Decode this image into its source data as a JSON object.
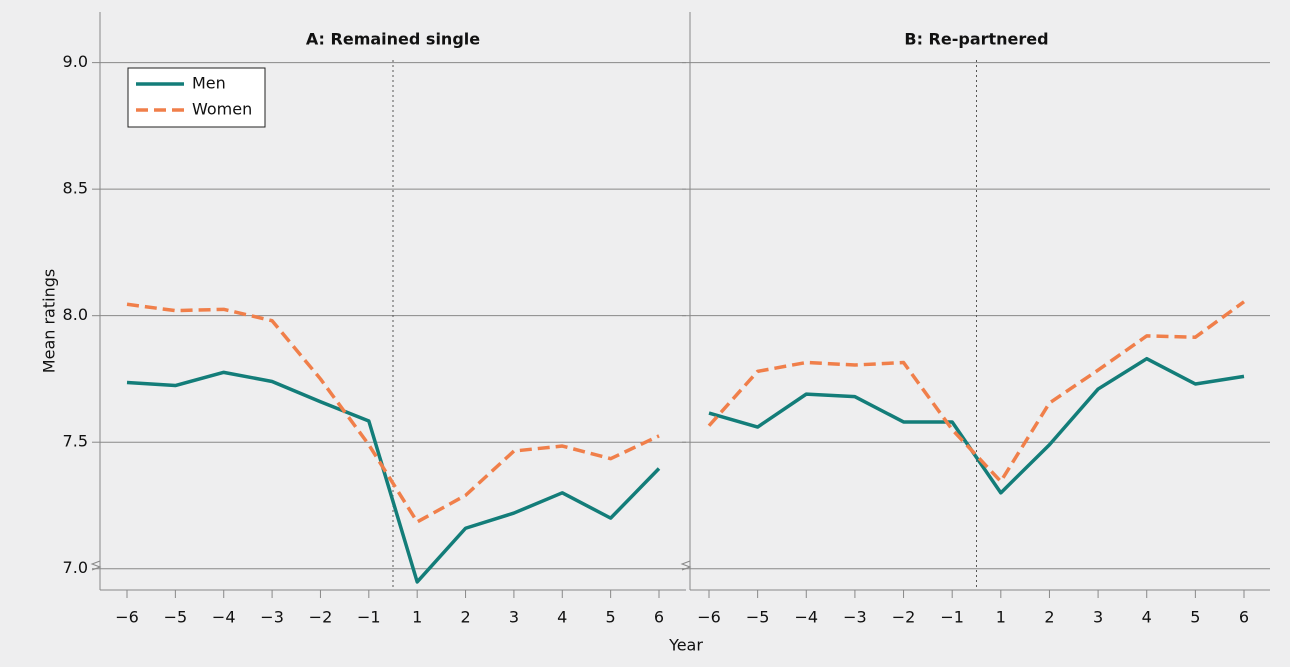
{
  "chart_data": [
    {
      "type": "line",
      "title": "A: Remained single",
      "x_label": "Year",
      "y_label": "Mean ratings",
      "categories": [
        "−6",
        "−5",
        "−4",
        "−3",
        "−2",
        "−1",
        "1",
        "2",
        "3",
        "4",
        "5",
        "6"
      ],
      "series": [
        {
          "name": "Men",
          "color": "#137d79",
          "dash": "solid",
          "values": [
            7.736,
            7.724,
            7.776,
            7.74,
            7.66,
            7.584,
            6.948,
            7.16,
            7.22,
            7.3,
            7.2,
            7.396
          ]
        },
        {
          "name": "Women",
          "color": "#f07f4a",
          "dash": "dashed",
          "values": [
            8.045,
            8.02,
            8.025,
            7.98,
            7.75,
            7.49,
            7.185,
            7.29,
            7.465,
            7.485,
            7.435,
            7.525
          ]
        }
      ],
      "ylim": [
        6.916,
        9.2
      ],
      "yticks": [
        {
          "value": 7,
          "label": "7.0"
        },
        {
          "value": 7.5,
          "label": "7.5"
        },
        {
          "value": 8,
          "label": "8.0"
        },
        {
          "value": 8.5,
          "label": "8.5"
        },
        {
          "value": 9,
          "label": "9.0"
        }
      ],
      "grid": true,
      "legend": "upper left"
    },
    {
      "type": "line",
      "title": "B: Re-partnered",
      "categories": [
        "−6",
        "−5",
        "−4",
        "−3",
        "−2",
        "−1",
        "1",
        "2",
        "3",
        "4",
        "5",
        "6"
      ],
      "series": [
        {
          "color": "#137d79",
          "dash": "solid",
          "values": [
            7.615,
            7.56,
            7.69,
            7.68,
            7.58,
            7.58,
            7.3,
            7.49,
            7.71,
            7.83,
            7.73,
            7.76
          ]
        },
        {
          "color": "#f07f4a",
          "dash": "dashed",
          "values": [
            7.565,
            7.78,
            7.815,
            7.805,
            7.815,
            7.55,
            7.345,
            7.655,
            7.785,
            7.92,
            7.915,
            8.055
          ]
        }
      ],
      "ylim": [
        6.916,
        9.2
      ],
      "yticks": [
        7,
        7.5,
        8,
        8.5,
        9
      ],
      "grid": true
    }
  ]
}
